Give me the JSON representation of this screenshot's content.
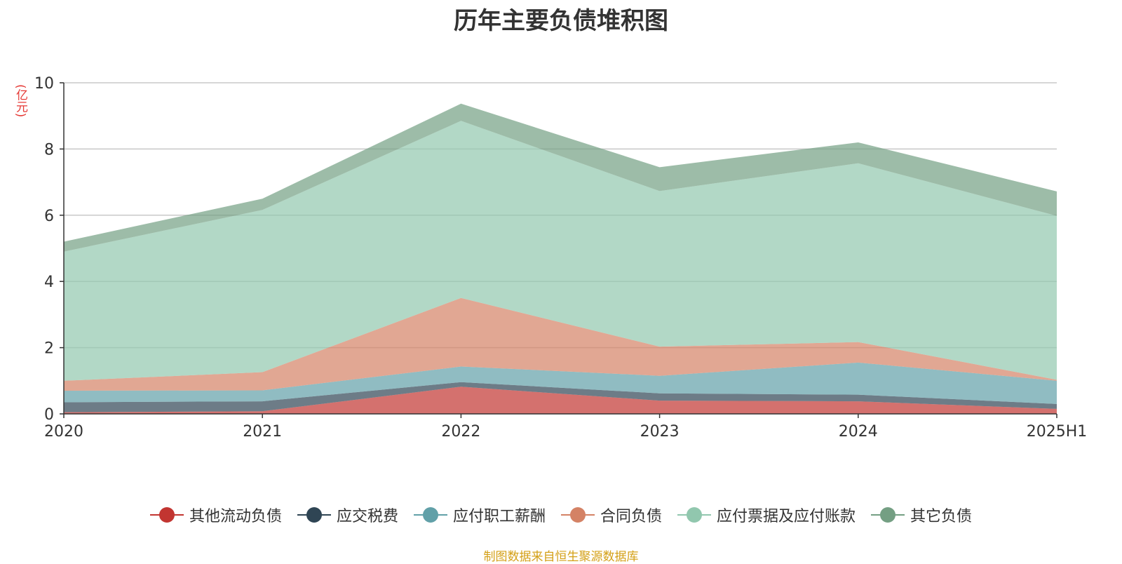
{
  "chart_data": {
    "type": "area",
    "stacked": true,
    "title": "历年主要负债堆积图",
    "ylabel": "(亿元)",
    "categories": [
      "2020",
      "2021",
      "2022",
      "2023",
      "2024",
      "2025H1"
    ],
    "ylim": [
      0,
      10
    ],
    "yticks": [
      0,
      2,
      4,
      6,
      8,
      10
    ],
    "grid": true,
    "legend_position": "bottom",
    "series": [
      {
        "name": "其他流动负债",
        "color": "#c23531",
        "values": [
          0.05,
          0.08,
          0.82,
          0.4,
          0.38,
          0.15
        ]
      },
      {
        "name": "应交税费",
        "color": "#2f4554",
        "values": [
          0.3,
          0.3,
          0.14,
          0.22,
          0.2,
          0.15
        ]
      },
      {
        "name": "应付职工薪酬",
        "color": "#61a0a8",
        "values": [
          0.35,
          0.33,
          0.47,
          0.53,
          0.97,
          0.7
        ]
      },
      {
        "name": "合同负债",
        "color": "#d48265",
        "values": [
          0.3,
          0.55,
          2.07,
          0.88,
          0.62,
          0.03
        ]
      },
      {
        "name": "应付票据及应付账款",
        "color": "#91c7ae",
        "values": [
          3.9,
          4.9,
          5.35,
          4.7,
          5.4,
          4.95
        ]
      },
      {
        "name": "其它负债",
        "color": "#749f83",
        "values": [
          0.3,
          0.34,
          0.52,
          0.72,
          0.63,
          0.74
        ]
      }
    ]
  },
  "footer": {
    "source": "制图数据来自恒生聚源数据库"
  }
}
